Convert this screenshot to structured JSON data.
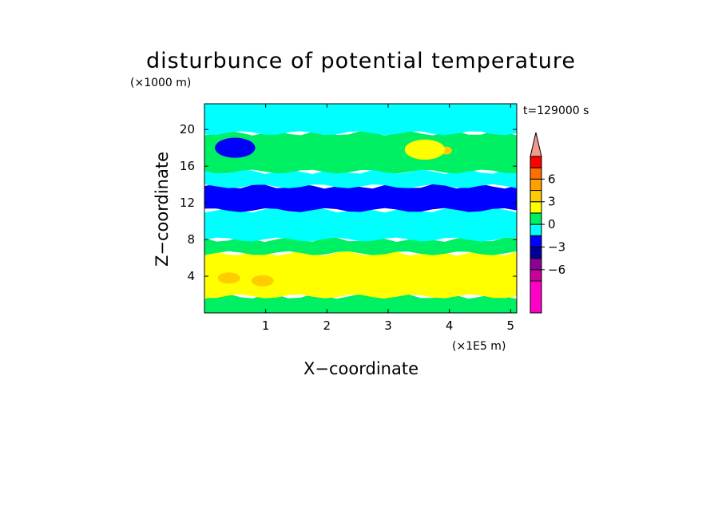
{
  "chart_data": {
    "type": "heatmap",
    "title": "disturbunce of potential temperature",
    "xlabel": "X−coordinate",
    "ylabel": "Z−coordinate",
    "x_unit": "(×1E5 m)",
    "y_unit": "(×1000 m)",
    "time_label": "t=129000 s",
    "xlim": [
      0,
      5.1
    ],
    "ylim": [
      0,
      22.8
    ],
    "x_ticks": [
      1,
      2,
      3,
      4,
      5
    ],
    "x_tick_labels": [
      "1",
      "2",
      "3",
      "4",
      "5"
    ],
    "y_ticks": [
      4,
      8,
      12,
      16,
      20
    ],
    "y_tick_labels": [
      "4",
      "8",
      "12",
      "16",
      "20"
    ],
    "colorbar": {
      "levels": [
        -7.5,
        -6,
        -4.5,
        -3,
        -1.5,
        0,
        1.5,
        3,
        4.5,
        6,
        7.5
      ],
      "labeled_levels": [
        6,
        3,
        0,
        -3,
        -6
      ],
      "labels": [
        "6",
        "3",
        "0",
        "−3",
        "−6"
      ],
      "colors": [
        "#ff00c8",
        "#c8009c",
        "#8c0096",
        "#000096",
        "#0000ff",
        "#00ffff",
        "#00f064",
        "#ffff00",
        "#ffcc00",
        "#ffa000",
        "#ff6e00",
        "#ff0000",
        "#f09b8c"
      ],
      "extend": "max"
    },
    "bands": [
      {
        "z_from": 0,
        "z_to": 1.8,
        "level": 0.5
      },
      {
        "z_from": 1.8,
        "z_to": 6.5,
        "level": 2.0
      },
      {
        "z_from": 6.5,
        "z_to": 8.0,
        "level": 0.5
      },
      {
        "z_from": 8.0,
        "z_to": 11.2,
        "level": -1.0
      },
      {
        "z_from": 11.2,
        "z_to": 13.8,
        "level": -2.0
      },
      {
        "z_from": 13.8,
        "z_to": 15.4,
        "level": -1.0
      },
      {
        "z_from": 15.4,
        "z_to": 19.6,
        "level": 0.5
      },
      {
        "z_from": 19.6,
        "z_to": 22.8,
        "level": -1.0
      }
    ],
    "features": [
      {
        "x": 0.65,
        "z": 17.6,
        "level": -4.0
      },
      {
        "x": 0.5,
        "z": 18.0,
        "level": -2.0
      },
      {
        "x": 3.95,
        "z": 17.7,
        "level": 4.0
      },
      {
        "x": 3.6,
        "z": 17.8,
        "level": 2.0
      },
      {
        "x": 0.4,
        "z": 3.8,
        "level": 3.0
      },
      {
        "x": 0.95,
        "z": 3.5,
        "level": 3.0
      }
    ]
  }
}
